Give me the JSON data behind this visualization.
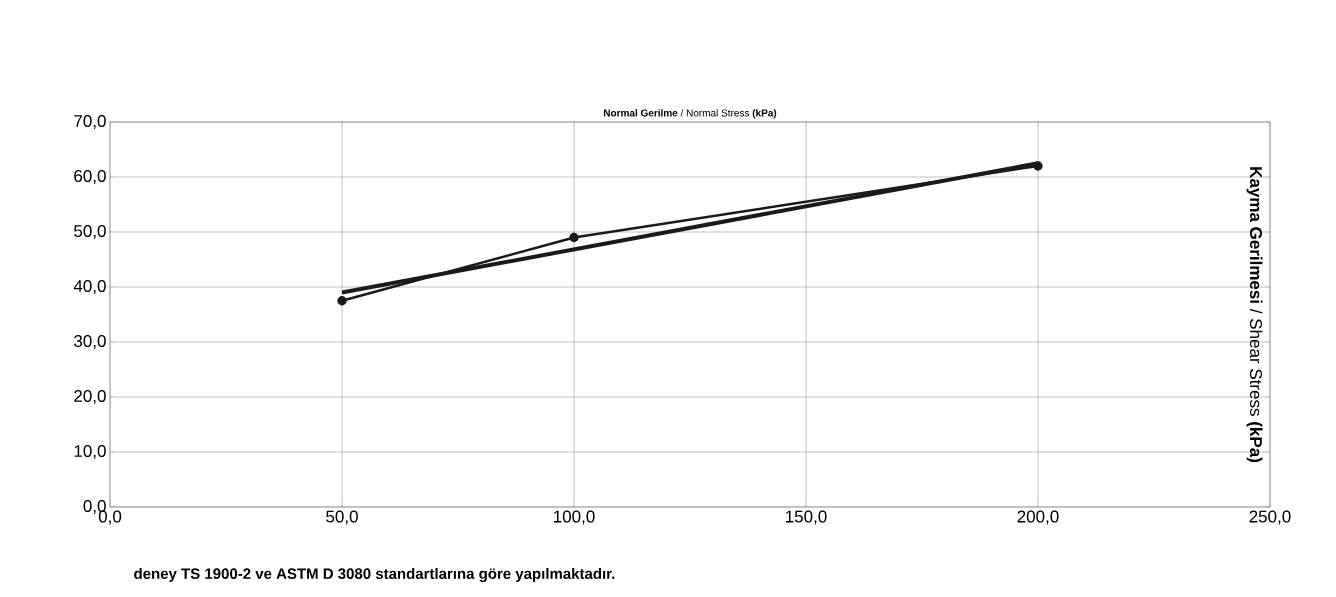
{
  "chart_data": {
    "type": "line",
    "xlabel": "**Normal Gerilme** / Normal Stress **(kPa)**",
    "ylabel": "**Kayma Gerilmesi** / Shear Stress **(kPa)**",
    "annotations": [
      "deney TS 1900-2 ve ASTM D 3080 standartlarına göre yapılmaktadır."
    ],
    "series": [
      {
        "color": "#1a1a1a",
        "x": [
          50,
          100,
          200
        ],
        "values": [
          37.5,
          49,
          62
        ],
        "marker": "circle"
      },
      {
        "color": "#1a1a1a",
        "x": [
          50,
          200
        ],
        "values": [
          39,
          62.5
        ],
        "marker": "none"
      }
    ],
    "xlim": [
      0,
      250
    ],
    "xticks": [
      {
        "value": 0,
        "label": "0,0"
      },
      {
        "value": 50,
        "label": "50,0"
      },
      {
        "value": 100,
        "label": "100,0"
      },
      {
        "value": 150,
        "label": "150,0"
      },
      {
        "value": 200,
        "label": "200,0"
      },
      {
        "value": 250,
        "label": "250,0"
      }
    ],
    "ylim": [
      0,
      70
    ],
    "yticks": [
      {
        "value": 0,
        "label": "0,0"
      },
      {
        "value": 10,
        "label": "10,0"
      },
      {
        "value": 20,
        "label": "20,0"
      },
      {
        "value": 30,
        "label": "30,0"
      },
      {
        "value": 40,
        "label": "40,0"
      },
      {
        "value": 50,
        "label": "50,0"
      },
      {
        "value": 60,
        "label": "60,0"
      },
      {
        "value": 70,
        "label": "70,0"
      }
    ],
    "grid": true,
    "line_style": "solid"
  }
}
